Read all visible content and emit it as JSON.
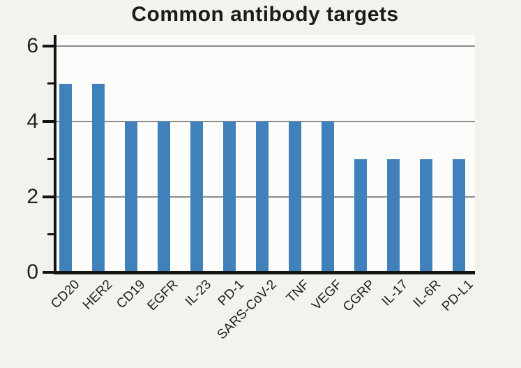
{
  "chart_data": {
    "type": "bar",
    "title": "Common antibody targets",
    "categories": [
      "CD20",
      "HER2",
      "CD19",
      "EGFR",
      "IL-23",
      "PD-1",
      "SARS-CoV-2",
      "TNF",
      "VEGF",
      "CGRP",
      "IL-17",
      "IL-6R",
      "PD-L1"
    ],
    "values": [
      5,
      5,
      4,
      4,
      4,
      4,
      4,
      4,
      4,
      3,
      3,
      3,
      3
    ],
    "xlabel": "",
    "ylabel": "",
    "ylim": [
      0,
      6.3
    ],
    "yticks": [
      0,
      2,
      4,
      6
    ],
    "minor_yticks": [
      1,
      3,
      5
    ],
    "grid": true,
    "grid_values": [
      2,
      4,
      6
    ],
    "legend": null,
    "x_tick_rotation_deg": 45,
    "colors": {
      "bar": "#4080bb",
      "grid": "#8c8c8c",
      "axis": "#141414",
      "text": "#1f1f1f",
      "page_background": "#f3f2ed",
      "plot_background": "#fcfcfa"
    }
  }
}
